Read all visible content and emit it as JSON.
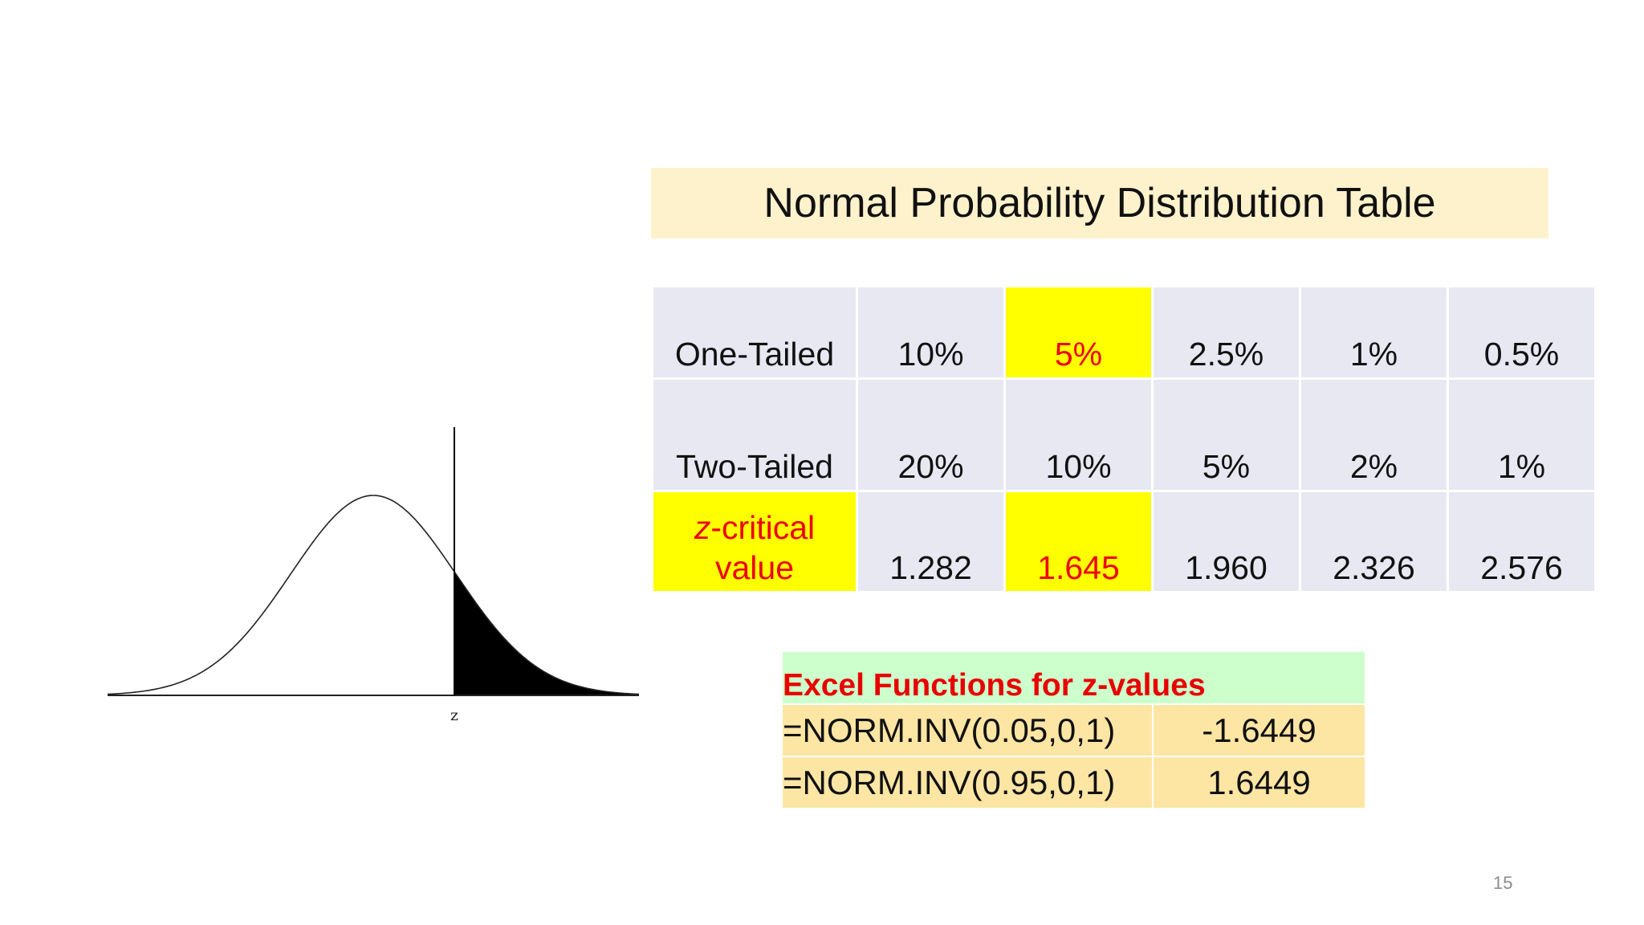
{
  "figure": {
    "axis_label": "z"
  },
  "title": "Normal Probability Distribution Table",
  "z_table": {
    "one_tailed_label": "One-Tailed",
    "two_tailed_label": "Two-Tailed",
    "zcrit_label_italic": "z",
    "zcrit_label_rest": "-critical",
    "zcrit_label_line2": "value",
    "one_tailed": [
      "10%",
      "5%",
      "2.5%",
      "1%",
      "0.5%"
    ],
    "two_tailed": [
      "20%",
      "10%",
      "5%",
      "2%",
      "1%"
    ],
    "z_critical": [
      "1.282",
      "1.645",
      "1.960",
      "2.326",
      "2.576"
    ],
    "highlight_color": "#ffff00",
    "highlight_text_color": "#ee0000"
  },
  "excel": {
    "heading": "Excel Functions for z-values",
    "rows": [
      {
        "formula": "=NORM.INV(0.05,0,1)",
        "result": "-1.6449"
      },
      {
        "formula": "=NORM.INV(0.95,0,1)",
        "result": "1.6449"
      }
    ]
  },
  "page_number": "15"
}
